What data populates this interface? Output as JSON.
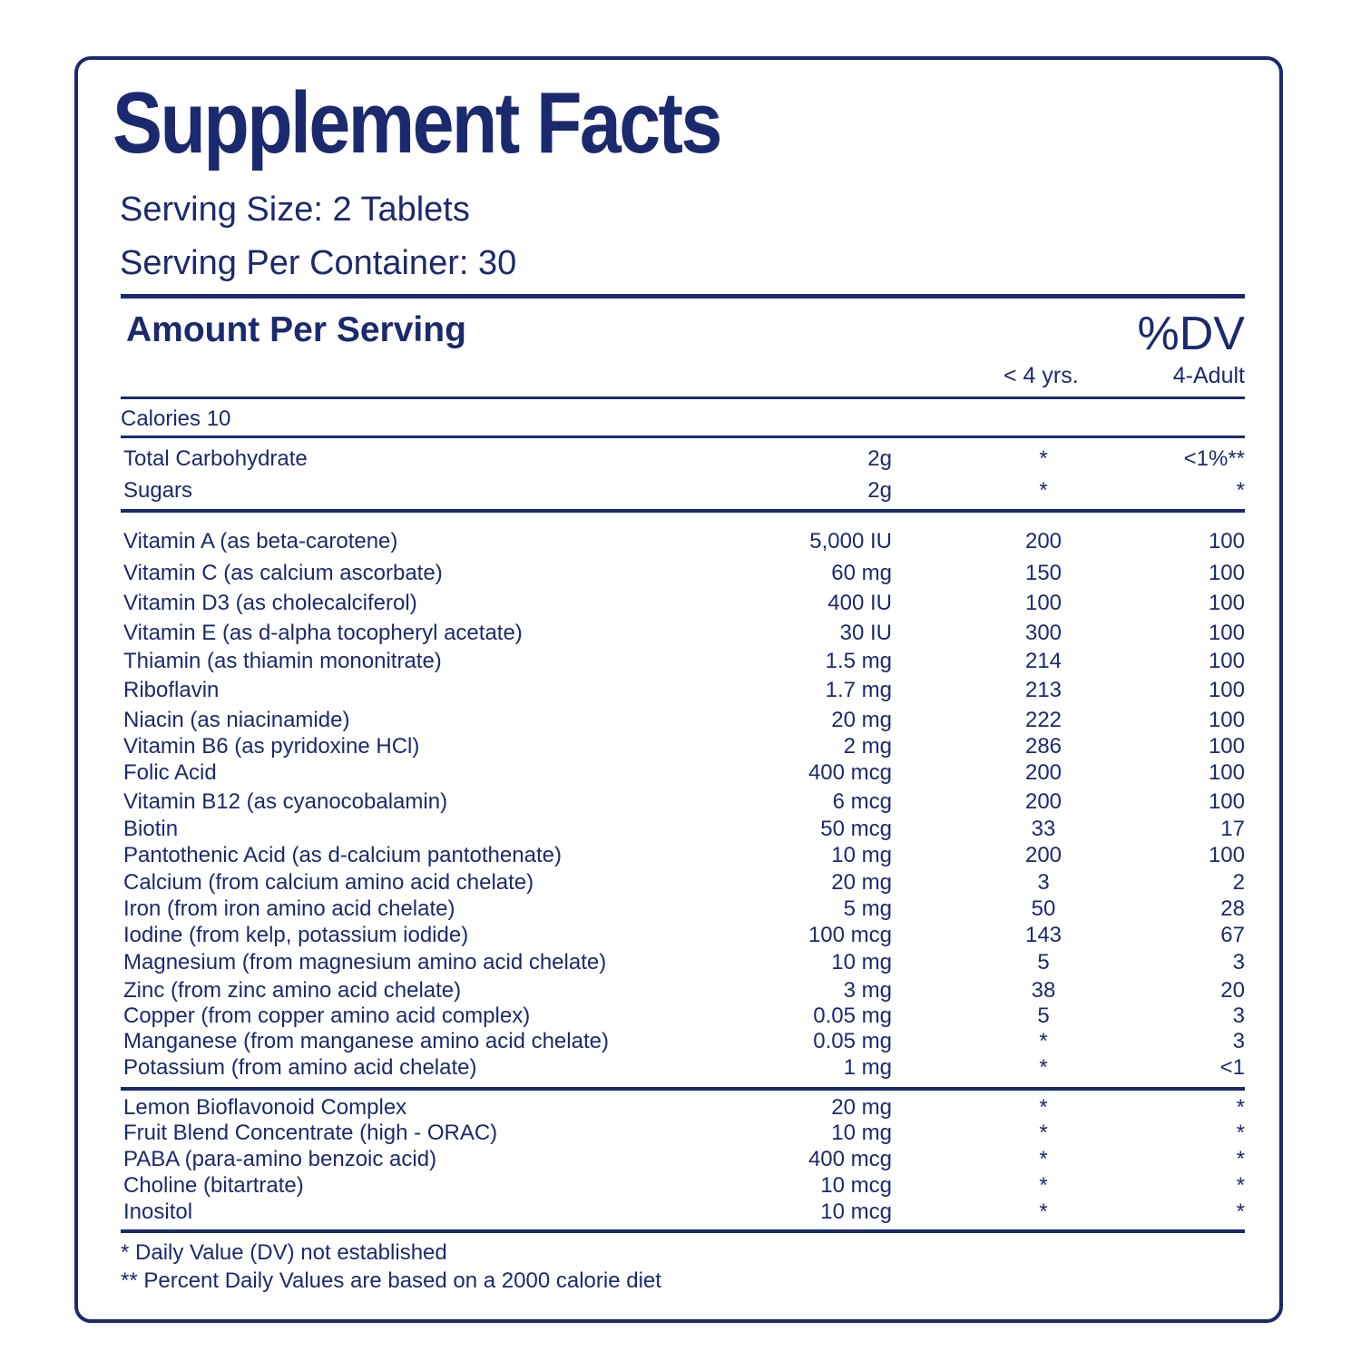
{
  "label": {
    "title": "Supplement Facts",
    "serving_size": "Serving Size: 2 Tablets",
    "servings_per_container": "Serving Per Container: 30",
    "amount_per_serving": "Amount Per Serving",
    "dv_heading": "%DV",
    "dv_col_kids": "< 4 yrs.",
    "dv_col_adult": "4-Adult",
    "calories": "Calories 10"
  },
  "macros": [
    {
      "name": "Total Carbohydrate",
      "amount": "2g",
      "kids": "*",
      "adult": "<1%**"
    },
    {
      "name": "Sugars",
      "amount": "2g",
      "kids": "*",
      "adult": "*"
    }
  ],
  "nutrients": [
    {
      "name": "Vitamin A (as beta-carotene)",
      "amount": "5,000 IU",
      "kids": "200",
      "adult": "100"
    },
    {
      "name": "Vitamin C (as calcium ascorbate)",
      "amount": "60 mg",
      "kids": "150",
      "adult": "100"
    },
    {
      "name": "Vitamin D3 (as cholecalciferol)",
      "amount": "400 IU",
      "kids": "100",
      "adult": "100"
    },
    {
      "name": "Vitamin E (as d-alpha tocopheryl acetate)",
      "amount": "30 IU",
      "kids": "300",
      "adult": "100"
    },
    {
      "name": "Thiamin (as thiamin mononitrate)",
      "amount": "1.5 mg",
      "kids": "214",
      "adult": "100"
    },
    {
      "name": "Riboflavin",
      "amount": "1.7 mg",
      "kids": "213",
      "adult": "100"
    },
    {
      "name": "Niacin (as niacinamide)",
      "amount": "20 mg",
      "kids": "222",
      "adult": "100"
    },
    {
      "name": "Vitamin B6 (as pyridoxine HCl)",
      "amount": "2 mg",
      "kids": "286",
      "adult": "100"
    },
    {
      "name": "Folic Acid",
      "amount": "400 mcg",
      "kids": "200",
      "adult": "100"
    },
    {
      "name": "Vitamin B12 (as cyanocobalamin)",
      "amount": "6 mcg",
      "kids": "200",
      "adult": "100"
    },
    {
      "name": "Biotin",
      "amount": "50 mcg",
      "kids": "33",
      "adult": "17"
    },
    {
      "name": "Pantothenic Acid (as d-calcium pantothenate)",
      "amount": "10 mg",
      "kids": "200",
      "adult": "100"
    },
    {
      "name": "Calcium (from calcium amino acid chelate)",
      "amount": "20 mg",
      "kids": "3",
      "adult": "2"
    },
    {
      "name": "Iron (from iron amino acid chelate)",
      "amount": "5 mg",
      "kids": "50",
      "adult": "28"
    },
    {
      "name": "Iodine (from kelp, potassium iodide)",
      "amount": "100 mcg",
      "kids": "143",
      "adult": "67"
    },
    {
      "name": "Magnesium (from magnesium amino acid chelate)",
      "amount": "10 mg",
      "kids": "5",
      "adult": "3"
    },
    {
      "name": "Zinc (from zinc amino acid chelate)",
      "amount": "3 mg",
      "kids": "38",
      "adult": "20"
    },
    {
      "name": "Copper (from copper amino acid complex)",
      "amount": "0.05 mg",
      "kids": "5",
      "adult": "3"
    },
    {
      "name": "Manganese (from manganese amino acid chelate)",
      "amount": "0.05 mg",
      "kids": "*",
      "adult": "3"
    },
    {
      "name": "Potassium (from amino acid chelate)",
      "amount": "1 mg",
      "kids": "*",
      "adult": "<1"
    }
  ],
  "other_ingredients": [
    {
      "name": "Lemon Bioflavonoid Complex",
      "amount": "20 mg",
      "kids": "*",
      "adult": "*"
    },
    {
      "name": "Fruit Blend Concentrate (high - ORAC)",
      "amount": "10 mg",
      "kids": "*",
      "adult": "*"
    },
    {
      "name": "PABA (para-amino benzoic acid)",
      "amount": "400 mcg",
      "kids": "*",
      "adult": "*"
    },
    {
      "name": "Choline (bitartrate)",
      "amount": "10 mcg",
      "kids": "*",
      "adult": "*"
    },
    {
      "name": "Inositol",
      "amount": "10 mcg",
      "kids": "*",
      "adult": "*"
    }
  ],
  "footnotes": [
    "* Daily Value (DV) not established",
    "** Percent Daily Values are based on a 2000 calorie diet"
  ],
  "colors": {
    "ink": "#1b2a6e",
    "background": "#ffffff"
  }
}
